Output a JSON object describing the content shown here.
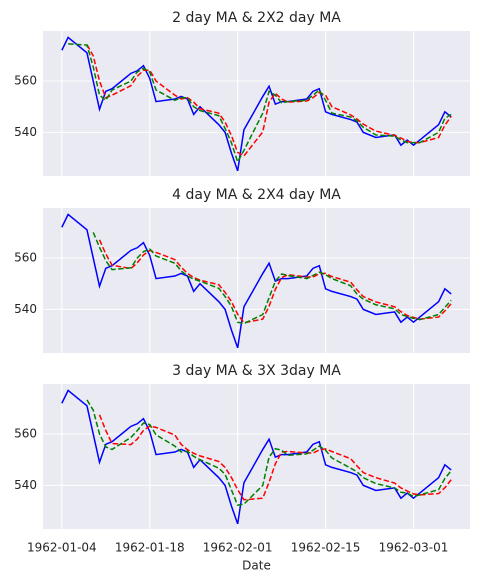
{
  "chart_data": [
    {
      "type": "line",
      "title": "2 day MA & 2X2 day MA",
      "x": [
        "1962-01-04",
        "1962-01-05",
        "1962-01-08",
        "1962-01-09",
        "1962-01-10",
        "1962-01-11",
        "1962-01-12",
        "1962-01-15",
        "1962-01-16",
        "1962-01-17",
        "1962-01-18",
        "1962-01-19",
        "1962-01-22",
        "1962-01-23",
        "1962-01-24",
        "1962-01-25",
        "1962-01-26",
        "1962-01-29",
        "1962-01-30",
        "1962-01-31",
        "1962-02-01",
        "1962-02-02",
        "1962-02-05",
        "1962-02-06",
        "1962-02-07",
        "1962-02-08",
        "1962-02-09",
        "1962-02-12",
        "1962-02-13",
        "1962-02-14",
        "1962-02-15",
        "1962-02-16",
        "1962-02-19",
        "1962-02-20",
        "1962-02-21",
        "1962-02-23",
        "1962-02-26",
        "1962-02-27",
        "1962-02-28",
        "1962-03-01",
        "1962-03-02",
        "1962-03-05",
        "1962-03-06",
        "1962-03-07"
      ],
      "series": [
        {
          "color": "#0000ff",
          "linestyle": "solid",
          "values": [
            572,
            577,
            571,
            560,
            549,
            556,
            557,
            563,
            564,
            566,
            561,
            552,
            553,
            554,
            553,
            547,
            550,
            543,
            540,
            532,
            525,
            541,
            554,
            558,
            551,
            552,
            552,
            553,
            556,
            557,
            548,
            547,
            545,
            544,
            540,
            538,
            539,
            535,
            537,
            535,
            537,
            543,
            548,
            546
          ]
        },
        {
          "color": "#ff0000",
          "linestyle": "dashed",
          "values": [
            null,
            null,
            574.2,
            569.8,
            560,
            553.5,
            554.5,
            558.2,
            561.8,
            564.2,
            564.2,
            560,
            554.5,
            553,
            553.5,
            551.8,
            549.2,
            547.5,
            544,
            538.8,
            532.2,
            530.8,
            540.2,
            551.8,
            555.2,
            553,
            551.8,
            552.2,
            553.5,
            555.5,
            554.5,
            550,
            546.8,
            545.2,
            543.2,
            540.5,
            538.8,
            537.8,
            536.5,
            536,
            536,
            538,
            542.8,
            546.2
          ]
        },
        {
          "color": "#008000",
          "linestyle": "dashed",
          "values": [
            null,
            574.5,
            574,
            565.5,
            554.5,
            552.5,
            556.5,
            560,
            563.5,
            565,
            563.5,
            556.5,
            552.5,
            553.5,
            553.5,
            550,
            548.5,
            546.5,
            541.5,
            536,
            528.5,
            533,
            547.5,
            556,
            554.5,
            551.5,
            552,
            552.5,
            554.5,
            556.5,
            552.5,
            547.5,
            546,
            544.5,
            542,
            539,
            538.5,
            537,
            536,
            536,
            536,
            540,
            545.5,
            547
          ]
        }
      ],
      "xlim": [
        "1962-01-01",
        "1962-03-10"
      ],
      "xticks": [
        "1962-01-04",
        "1962-01-18",
        "1962-02-01",
        "1962-02-15",
        "1962-03-01"
      ],
      "show_xticklabels": false,
      "ylim": [
        523,
        579.5
      ],
      "yticks": [
        540,
        560
      ],
      "grid": true
    },
    {
      "type": "line",
      "title": "4 day MA & 2X4 day MA",
      "x": [
        "1962-01-04",
        "1962-01-05",
        "1962-01-08",
        "1962-01-09",
        "1962-01-10",
        "1962-01-11",
        "1962-01-12",
        "1962-01-15",
        "1962-01-16",
        "1962-01-17",
        "1962-01-18",
        "1962-01-19",
        "1962-01-22",
        "1962-01-23",
        "1962-01-24",
        "1962-01-25",
        "1962-01-26",
        "1962-01-29",
        "1962-01-30",
        "1962-01-31",
        "1962-02-01",
        "1962-02-02",
        "1962-02-05",
        "1962-02-06",
        "1962-02-07",
        "1962-02-08",
        "1962-02-09",
        "1962-02-12",
        "1962-02-13",
        "1962-02-14",
        "1962-02-15",
        "1962-02-16",
        "1962-02-19",
        "1962-02-20",
        "1962-02-21",
        "1962-02-23",
        "1962-02-26",
        "1962-02-27",
        "1962-02-28",
        "1962-03-01",
        "1962-03-02",
        "1962-03-05",
        "1962-03-06",
        "1962-03-07"
      ],
      "series": [
        {
          "color": "#0000ff",
          "linestyle": "solid",
          "values": [
            572,
            577,
            571,
            560,
            549,
            556,
            557,
            563,
            564,
            566,
            561,
            552,
            553,
            554,
            553,
            547,
            550,
            543,
            540,
            532,
            525,
            541,
            554,
            558,
            551,
            552,
            552,
            553,
            556,
            557,
            548,
            547,
            545,
            544,
            540,
            538,
            539,
            535,
            537,
            535,
            537,
            543,
            548,
            546
          ]
        },
        {
          "color": "#ff0000",
          "linestyle": "dashed",
          "values": [
            null,
            null,
            null,
            null,
            567.1,
            561.6,
            557.2,
            555.9,
            558.1,
            561.2,
            563,
            562.2,
            559.4,
            556.5,
            554,
            552.4,
            551.4,
            549.6,
            546.6,
            543.1,
            538.1,
            534.8,
            536.2,
            541.2,
            547.8,
            552.4,
            553.5,
            552.6,
            552.6,
            553.9,
            554,
            552.8,
            550.6,
            547.6,
            545,
            542.9,
            541,
            539.1,
            537.6,
            536.9,
            536.2,
            537,
            539.4,
            542.2
          ]
        },
        {
          "color": "#008000",
          "linestyle": "dashed",
          "values": [
            null,
            null,
            null,
            570,
            564.2,
            559,
            555.5,
            556.2,
            560,
            562.5,
            563.5,
            560.8,
            558,
            555,
            553,
            551.8,
            551,
            548.2,
            545,
            541.2,
            535,
            534.5,
            538,
            544.5,
            551,
            553.8,
            553.2,
            552,
            553.2,
            554.5,
            553.5,
            552,
            549.2,
            546,
            544,
            541.8,
            540.2,
            538,
            537.2,
            536.5,
            536,
            538,
            540.8,
            543.5
          ]
        }
      ],
      "xlim": [
        "1962-01-01",
        "1962-03-10"
      ],
      "xticks": [
        "1962-01-04",
        "1962-01-18",
        "1962-02-01",
        "1962-02-15",
        "1962-03-01"
      ],
      "show_xticklabels": false,
      "ylim": [
        523,
        579.5
      ],
      "yticks": [
        540,
        560
      ],
      "grid": true
    },
    {
      "type": "line",
      "title": "3 day MA & 3X 3day MA",
      "xlabel": "Date",
      "x": [
        "1962-01-04",
        "1962-01-05",
        "1962-01-08",
        "1962-01-09",
        "1962-01-10",
        "1962-01-11",
        "1962-01-12",
        "1962-01-15",
        "1962-01-16",
        "1962-01-17",
        "1962-01-18",
        "1962-01-19",
        "1962-01-22",
        "1962-01-23",
        "1962-01-24",
        "1962-01-25",
        "1962-01-26",
        "1962-01-29",
        "1962-01-30",
        "1962-01-31",
        "1962-02-01",
        "1962-02-02",
        "1962-02-05",
        "1962-02-06",
        "1962-02-07",
        "1962-02-08",
        "1962-02-09",
        "1962-02-12",
        "1962-02-13",
        "1962-02-14",
        "1962-02-15",
        "1962-02-16",
        "1962-02-19",
        "1962-02-20",
        "1962-02-21",
        "1962-02-23",
        "1962-02-26",
        "1962-02-27",
        "1962-02-28",
        "1962-03-01",
        "1962-03-02",
        "1962-03-05",
        "1962-03-06",
        "1962-03-07"
      ],
      "series": [
        {
          "color": "#0000ff",
          "linestyle": "solid",
          "values": [
            572,
            577,
            571,
            560,
            549,
            556,
            557,
            563,
            564,
            566,
            561,
            552,
            553,
            554,
            553,
            547,
            550,
            543,
            540,
            532,
            525,
            541,
            554,
            558,
            551,
            552,
            552,
            553,
            556,
            557,
            548,
            547,
            545,
            544,
            540,
            538,
            539,
            535,
            537,
            535,
            537,
            543,
            548,
            546
          ]
        },
        {
          "color": "#ff0000",
          "linestyle": "dashed",
          "values": [
            null,
            null,
            null,
            null,
            567.5,
            561.4,
            556.3,
            555.9,
            558,
            561.4,
            563.1,
            562.6,
            559.6,
            556,
            553.9,
            552.5,
            551.5,
            549.3,
            547,
            543.1,
            538.3,
            534.4,
            535,
            541.2,
            548.4,
            553,
            553.2,
            552.6,
            552.6,
            553.8,
            554.2,
            553.2,
            550.4,
            547.6,
            545,
            543,
            540.9,
            539,
            537.8,
            536.7,
            536.3,
            536.8,
            539.1,
            542.2
          ]
        },
        {
          "color": "#008000",
          "linestyle": "dashed",
          "values": [
            null,
            null,
            573.3,
            569.3,
            560,
            555,
            554,
            558.7,
            561.3,
            564.3,
            563.7,
            559.7,
            555.3,
            553,
            553.3,
            551.3,
            550,
            546.7,
            544.3,
            538.3,
            532.3,
            532.7,
            540,
            551,
            554.3,
            553.7,
            551.7,
            552.3,
            553.7,
            555.3,
            553.7,
            550.7,
            546.7,
            545.3,
            543,
            540.7,
            539,
            537.3,
            537,
            535.7,
            536.3,
            538.3,
            542.7,
            545.7
          ]
        }
      ],
      "xlim": [
        "1962-01-01",
        "1962-03-10"
      ],
      "xticks": [
        "1962-01-04",
        "1962-01-18",
        "1962-02-01",
        "1962-02-15",
        "1962-03-01"
      ],
      "show_xticklabels": true,
      "ylim": [
        523,
        579.5
      ],
      "yticks": [
        540,
        560
      ],
      "grid": true
    }
  ]
}
